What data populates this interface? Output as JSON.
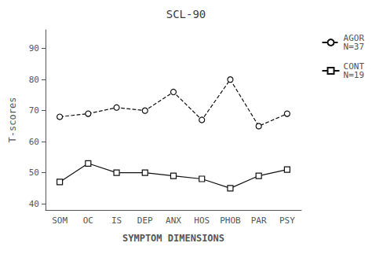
{
  "chart_data": {
    "type": "line",
    "title": "SCL-90",
    "xlabel": "SYMPTOM DIMENSIONS",
    "ylabel": "T-scores",
    "categories": [
      "SOM",
      "OC",
      "IS",
      "DEP",
      "ANX",
      "HOS",
      "PHOB",
      "PAR",
      "PSY"
    ],
    "series": [
      {
        "name": "AGOR\nN=37",
        "color": "#111111",
        "values": [
          68,
          69,
          71,
          70,
          76,
          67,
          80,
          65,
          69
        ],
        "marker": "circle",
        "line_style": "dashed"
      },
      {
        "name": "CONT\nN=19",
        "color": "#111111",
        "values": [
          47,
          53,
          50,
          50,
          49,
          48,
          45,
          49,
          51
        ],
        "marker": "square",
        "line_style": "solid"
      }
    ],
    "ylim": [
      38,
      96
    ],
    "yticks": [
      40,
      50,
      60,
      70,
      80,
      90
    ],
    "grid": false,
    "legend": "upper right"
  }
}
